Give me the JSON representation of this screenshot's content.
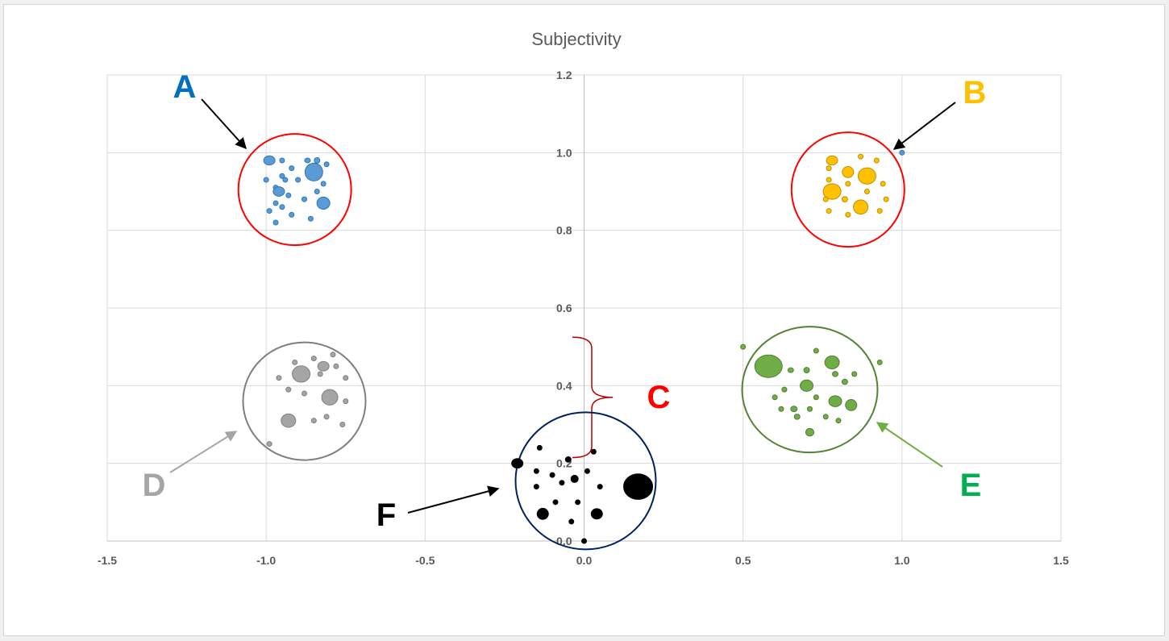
{
  "chart_data": {
    "type": "scatter",
    "title": "Subjectivity",
    "xlim": [
      -1.5,
      1.5
    ],
    "ylim": [
      0.0,
      1.2
    ],
    "x_ticks": [
      "-1.5",
      "-1.0",
      "-0.5",
      "0.0",
      "0.5",
      "1.0",
      "1.5"
    ],
    "y_ticks": [
      "0.0",
      "0.2",
      "0.4",
      "0.6",
      "0.8",
      "1.0",
      "1.2"
    ],
    "grid": true,
    "legend": "none",
    "series": [
      {
        "color": "#5b9bd5",
        "edge": "#2e75b6",
        "points": [
          {
            "x": -0.99,
            "y": 0.98,
            "s": 7
          },
          {
            "x": -0.95,
            "y": 0.98,
            "s": 3
          },
          {
            "x": -0.92,
            "y": 0.96,
            "s": 3
          },
          {
            "x": -0.87,
            "y": 0.98,
            "s": 3.5
          },
          {
            "x": -0.84,
            "y": 0.98,
            "s": 3.5
          },
          {
            "x": -0.81,
            "y": 0.97,
            "s": 3
          },
          {
            "x": -0.95,
            "y": 0.94,
            "s": 3
          },
          {
            "x": -0.85,
            "y": 0.95,
            "s": 11
          },
          {
            "x": -1.0,
            "y": 0.93,
            "s": 3
          },
          {
            "x": -0.94,
            "y": 0.93,
            "s": 3
          },
          {
            "x": -0.9,
            "y": 0.93,
            "s": 3
          },
          {
            "x": -0.82,
            "y": 0.92,
            "s": 3
          },
          {
            "x": -0.97,
            "y": 0.91,
            "s": 3
          },
          {
            "x": -0.96,
            "y": 0.9,
            "s": 7
          },
          {
            "x": -0.93,
            "y": 0.89,
            "s": 3
          },
          {
            "x": -0.84,
            "y": 0.9,
            "s": 3
          },
          {
            "x": -0.97,
            "y": 0.87,
            "s": 3
          },
          {
            "x": -0.88,
            "y": 0.88,
            "s": 3
          },
          {
            "x": -0.82,
            "y": 0.87,
            "s": 8
          },
          {
            "x": -0.95,
            "y": 0.86,
            "s": 3
          },
          {
            "x": -0.99,
            "y": 0.85,
            "s": 3
          },
          {
            "x": -0.92,
            "y": 0.84,
            "s": 3
          },
          {
            "x": -0.86,
            "y": 0.83,
            "s": 3
          },
          {
            "x": -0.97,
            "y": 0.82,
            "s": 3
          },
          {
            "x": 1.0,
            "y": 1.0,
            "s": 3
          }
        ]
      },
      {
        "color": "#ffc000",
        "edge": "#bf9000",
        "points": [
          {
            "x": 0.78,
            "y": 0.98,
            "s": 7
          },
          {
            "x": 0.87,
            "y": 0.99,
            "s": 3
          },
          {
            "x": 0.92,
            "y": 0.98,
            "s": 3
          },
          {
            "x": 0.77,
            "y": 0.96,
            "s": 3
          },
          {
            "x": 0.83,
            "y": 0.95,
            "s": 7
          },
          {
            "x": 0.89,
            "y": 0.94,
            "s": 11
          },
          {
            "x": 0.77,
            "y": 0.93,
            "s": 3
          },
          {
            "x": 0.83,
            "y": 0.92,
            "s": 3
          },
          {
            "x": 0.94,
            "y": 0.92,
            "s": 3
          },
          {
            "x": 0.78,
            "y": 0.9,
            "s": 11
          },
          {
            "x": 0.89,
            "y": 0.9,
            "s": 3
          },
          {
            "x": 0.82,
            "y": 0.88,
            "s": 3.5
          },
          {
            "x": 0.76,
            "y": 0.88,
            "s": 3
          },
          {
            "x": 0.95,
            "y": 0.88,
            "s": 3
          },
          {
            "x": 0.87,
            "y": 0.86,
            "s": 9
          },
          {
            "x": 0.77,
            "y": 0.85,
            "s": 3
          },
          {
            "x": 0.83,
            "y": 0.84,
            "s": 3
          },
          {
            "x": 0.93,
            "y": 0.85,
            "s": 3
          }
        ]
      },
      {
        "color": "#a5a5a5",
        "edge": "#7f7f7f",
        "points": [
          {
            "x": -0.85,
            "y": 0.47,
            "s": 3
          },
          {
            "x": -0.79,
            "y": 0.48,
            "s": 3
          },
          {
            "x": -0.91,
            "y": 0.46,
            "s": 3
          },
          {
            "x": -0.82,
            "y": 0.45,
            "s": 7
          },
          {
            "x": -0.78,
            "y": 0.45,
            "s": 3
          },
          {
            "x": -0.89,
            "y": 0.43,
            "s": 11
          },
          {
            "x": -0.83,
            "y": 0.43,
            "s": 3
          },
          {
            "x": -0.96,
            "y": 0.42,
            "s": 3
          },
          {
            "x": -0.75,
            "y": 0.42,
            "s": 3
          },
          {
            "x": -0.93,
            "y": 0.39,
            "s": 3
          },
          {
            "x": -0.88,
            "y": 0.38,
            "s": 3
          },
          {
            "x": -0.8,
            "y": 0.37,
            "s": 10
          },
          {
            "x": -0.75,
            "y": 0.36,
            "s": 3
          },
          {
            "x": -0.81,
            "y": 0.32,
            "s": 3
          },
          {
            "x": -0.85,
            "y": 0.31,
            "s": 3
          },
          {
            "x": -0.93,
            "y": 0.31,
            "s": 9
          },
          {
            "x": -0.76,
            "y": 0.3,
            "s": 3
          },
          {
            "x": -0.99,
            "y": 0.25,
            "s": 3
          }
        ]
      },
      {
        "color": "#70ad47",
        "edge": "#507e32",
        "points": [
          {
            "x": 0.58,
            "y": 0.45,
            "s": 17
          },
          {
            "x": 0.73,
            "y": 0.49,
            "s": 3
          },
          {
            "x": 0.78,
            "y": 0.46,
            "s": 9
          },
          {
            "x": 0.65,
            "y": 0.44,
            "s": 3.5
          },
          {
            "x": 0.7,
            "y": 0.44,
            "s": 3.5
          },
          {
            "x": 0.79,
            "y": 0.43,
            "s": 3.5
          },
          {
            "x": 0.85,
            "y": 0.43,
            "s": 3
          },
          {
            "x": 0.93,
            "y": 0.46,
            "s": 3
          },
          {
            "x": 0.82,
            "y": 0.41,
            "s": 3.5
          },
          {
            "x": 0.7,
            "y": 0.4,
            "s": 8
          },
          {
            "x": 0.63,
            "y": 0.39,
            "s": 3
          },
          {
            "x": 0.6,
            "y": 0.37,
            "s": 3
          },
          {
            "x": 0.73,
            "y": 0.37,
            "s": 3
          },
          {
            "x": 0.79,
            "y": 0.36,
            "s": 8
          },
          {
            "x": 0.84,
            "y": 0.35,
            "s": 7
          },
          {
            "x": 0.62,
            "y": 0.34,
            "s": 3
          },
          {
            "x": 0.66,
            "y": 0.34,
            "s": 4
          },
          {
            "x": 0.71,
            "y": 0.34,
            "s": 3
          },
          {
            "x": 0.67,
            "y": 0.32,
            "s": 3.5
          },
          {
            "x": 0.76,
            "y": 0.32,
            "s": 3
          },
          {
            "x": 0.8,
            "y": 0.31,
            "s": 3
          },
          {
            "x": 0.71,
            "y": 0.28,
            "s": 5
          },
          {
            "x": 0.5,
            "y": 0.5,
            "s": 3
          }
        ]
      },
      {
        "color": "#000000",
        "edge": "#000000",
        "points": [
          {
            "x": -0.14,
            "y": 0.24,
            "s": 3
          },
          {
            "x": -0.05,
            "y": 0.21,
            "s": 3.5
          },
          {
            "x": 0.03,
            "y": 0.23,
            "s": 3
          },
          {
            "x": -0.21,
            "y": 0.2,
            "s": 7
          },
          {
            "x": -0.15,
            "y": 0.18,
            "s": 3
          },
          {
            "x": -0.1,
            "y": 0.17,
            "s": 3
          },
          {
            "x": 0.01,
            "y": 0.18,
            "s": 3
          },
          {
            "x": -0.03,
            "y": 0.16,
            "s": 4.5
          },
          {
            "x": -0.07,
            "y": 0.15,
            "s": 3
          },
          {
            "x": 0.17,
            "y": 0.14,
            "s": 18
          },
          {
            "x": -0.15,
            "y": 0.14,
            "s": 3
          },
          {
            "x": 0.05,
            "y": 0.14,
            "s": 3
          },
          {
            "x": -0.09,
            "y": 0.1,
            "s": 3
          },
          {
            "x": -0.02,
            "y": 0.1,
            "s": 3
          },
          {
            "x": -0.13,
            "y": 0.07,
            "s": 7
          },
          {
            "x": 0.04,
            "y": 0.07,
            "s": 7
          },
          {
            "x": -0.04,
            "y": 0.05,
            "s": 3
          },
          {
            "x": 0.0,
            "y": 0.0,
            "s": 3
          }
        ]
      }
    ],
    "annotations": [
      {
        "label": "A",
        "color": "#0070c0",
        "cluster": {
          "x": -0.91,
          "y": 0.905,
          "r": 70,
          "ry": 69,
          "stroke": "#ff0000"
        }
      },
      {
        "label": "B",
        "color": "#ffc000",
        "cluster": {
          "x": 0.83,
          "y": 0.905,
          "r": 70,
          "ry": 71,
          "stroke": "#ff0000"
        }
      },
      {
        "label": "C",
        "color": "#ff0000",
        "brace": {
          "x": 0.09,
          "y_top": 0.525,
          "y_bottom": 0.215,
          "stroke": "#c00000"
        }
      },
      {
        "label": "D",
        "color": "#a5a5a5",
        "cluster": {
          "x": -0.88,
          "y": 0.36,
          "r": 76,
          "ry": 73,
          "stroke": "#7f7f7f"
        }
      },
      {
        "label": "E",
        "color": "#00b050",
        "cluster": {
          "x": 0.71,
          "y": 0.39,
          "r": 84,
          "ry": 78,
          "stroke": "#548235"
        }
      },
      {
        "label": "F",
        "color": "#000000",
        "cluster": {
          "x": 0.005,
          "y": 0.155,
          "r": 87,
          "ry": 85,
          "stroke": "#002060"
        }
      }
    ]
  }
}
